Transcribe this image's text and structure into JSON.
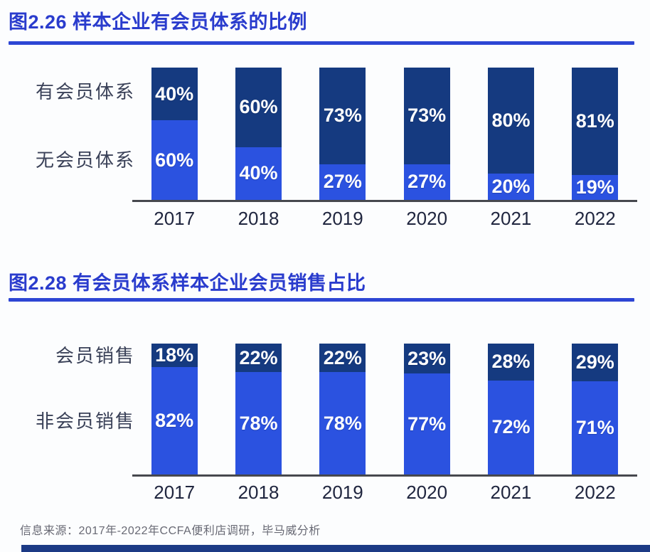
{
  "figure1": {
    "title": "图2.26 样本企业有会员体系的比例",
    "series_labels": [
      "有会员体系",
      "无会员体系"
    ]
  },
  "figure2": {
    "title": "图2.28 有会员体系样本企业会员销售占比",
    "series_labels": [
      "会员销售",
      "非会员销售"
    ]
  },
  "footer": {
    "source": "信息来源：2017年-2022年CCFA便利店调研，毕马威分析"
  },
  "colors": {
    "title_blue": "#2a3ccd",
    "rule_blue": "#2d46d4",
    "dark_navy_segment": "#153a80",
    "bright_blue_segment": "#2b52e0",
    "axis_gray": "#46484e",
    "category_label": "#3a4158",
    "year_label": "#20263f",
    "footer_gray": "#686974",
    "bottom_strip_navy": "#1c3a85"
  },
  "chart_data": [
    {
      "type": "bar",
      "stacked": true,
      "title": "图2.26 样本企业有会员体系的比例",
      "categories": [
        "2017",
        "2018",
        "2019",
        "2020",
        "2021",
        "2022"
      ],
      "series": [
        {
          "name": "有会员体系",
          "color": "#153a80",
          "values": [
            40,
            60,
            73,
            73,
            80,
            81
          ]
        },
        {
          "name": "无会员体系",
          "color": "#2b52e0",
          "values": [
            60,
            40,
            27,
            27,
            20,
            19
          ]
        }
      ],
      "unit": "%",
      "value_labels": true,
      "ylim": [
        0,
        100
      ],
      "grid": false,
      "legend_position": "left"
    },
    {
      "type": "bar",
      "stacked": true,
      "title": "图2.28 有会员体系样本企业会员销售占比",
      "categories": [
        "2017",
        "2018",
        "2019",
        "2020",
        "2021",
        "2022"
      ],
      "series": [
        {
          "name": "会员销售",
          "color": "#153a80",
          "values": [
            18,
            22,
            22,
            23,
            28,
            29
          ]
        },
        {
          "name": "非会员销售",
          "color": "#2b52e0",
          "values": [
            82,
            78,
            78,
            77,
            72,
            71
          ]
        }
      ],
      "unit": "%",
      "value_labels": true,
      "ylim": [
        0,
        100
      ],
      "grid": false,
      "legend_position": "left"
    }
  ]
}
